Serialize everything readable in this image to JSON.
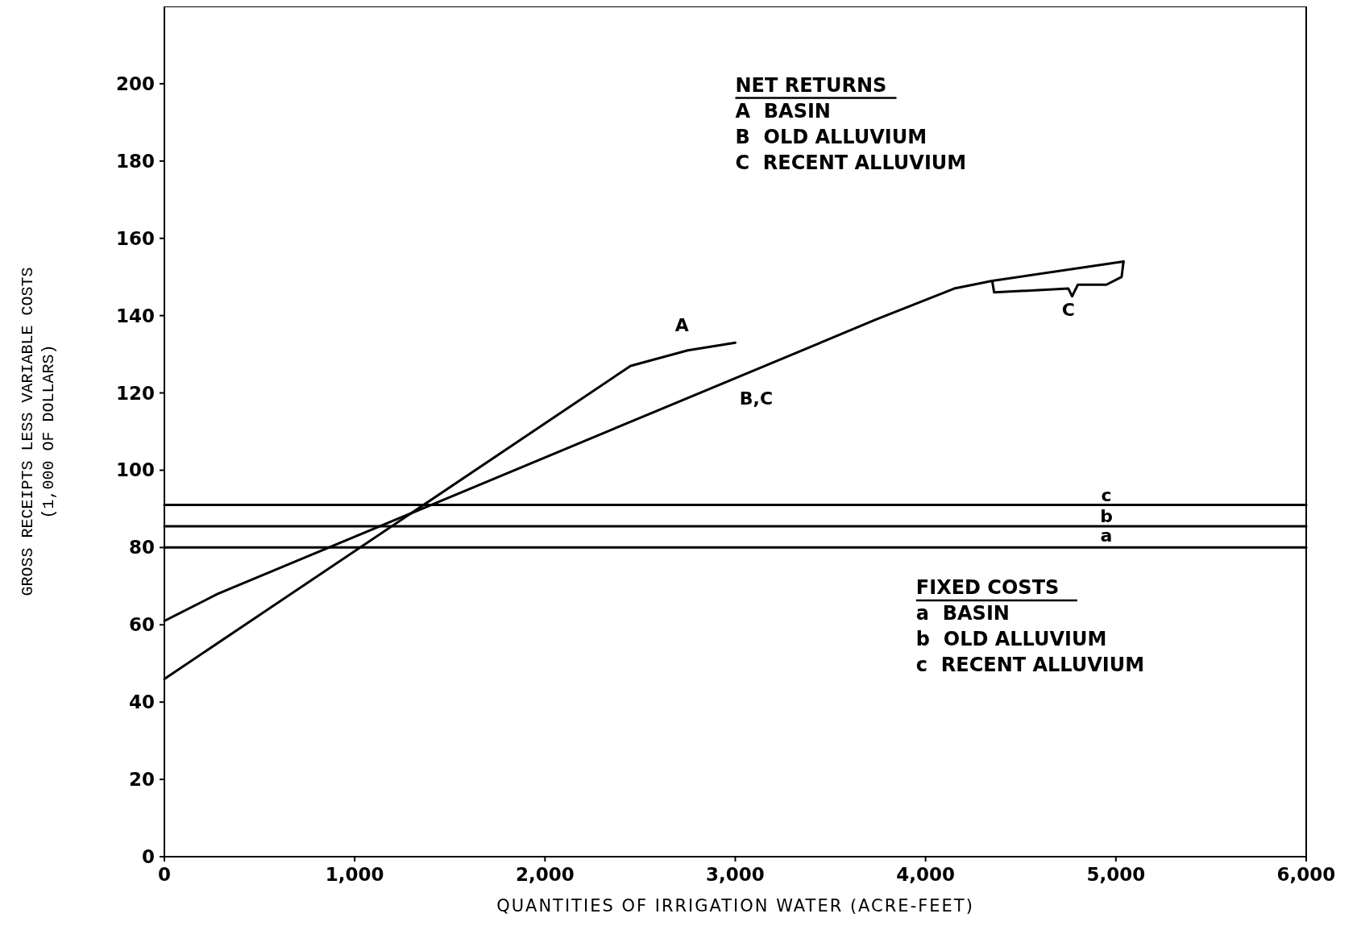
{
  "chart_data": {
    "type": "line",
    "xlabel": "QUANTITIES OF IRRIGATION WATER (ACRE-FEET)",
    "ylabel": "GROSS RECEIPTS LESS VARIABLE COSTS\n(1,000 OF DOLLARS)",
    "xlim": [
      0,
      6000
    ],
    "ylim": [
      0,
      220
    ],
    "xticks": [
      0,
      {
        "value": 1000,
        "label": "1,000"
      },
      {
        "value": 2000,
        "label": "2,000"
      },
      {
        "value": 3000,
        "label": "3,000"
      },
      {
        "value": 4000,
        "label": "4,000"
      },
      {
        "value": 5000,
        "label": "5,000"
      },
      {
        "value": 6000,
        "label": "6,000"
      }
    ],
    "yticks": [
      0,
      20,
      40,
      60,
      80,
      100,
      120,
      140,
      160,
      180,
      200
    ],
    "grid": false,
    "line_style": "solid",
    "series": [
      {
        "color": "#000000",
        "x": [
          0,
          2450,
          2750,
          3000
        ],
        "values": [
          46,
          127,
          131,
          133
        ]
      },
      {
        "color": "#000000",
        "x": [
          0,
          280,
          3740,
          4150,
          4350,
          5040
        ],
        "values": [
          61,
          68,
          139,
          147,
          149,
          154
        ]
      },
      {
        "color": "#000000",
        "x": [
          4350,
          4360,
          4750,
          4770,
          4800,
          4950,
          5030,
          5040
        ],
        "values": [
          149,
          146,
          147,
          145,
          148,
          148,
          150,
          154
        ]
      },
      {
        "color": "#000000",
        "x": [
          0,
          6000
        ],
        "values": [
          80,
          80
        ]
      },
      {
        "color": "#000000",
        "x": [
          0,
          6000
        ],
        "values": [
          85.5,
          85.5
        ]
      },
      {
        "color": "#000000",
        "x": [
          0,
          6000
        ],
        "values": [
          91,
          91
        ]
      }
    ],
    "annotations": [
      "NET RETURNS",
      "A  BASIN",
      "B  OLD ALLUVIUM",
      "C  RECENT ALLUVIUM",
      "FIXED COSTS",
      "a  BASIN",
      "b  OLD ALLUVIUM",
      "c  RECENT ALLUVIUM",
      "A",
      "B,C",
      "C",
      "a",
      "b",
      "c"
    ]
  }
}
